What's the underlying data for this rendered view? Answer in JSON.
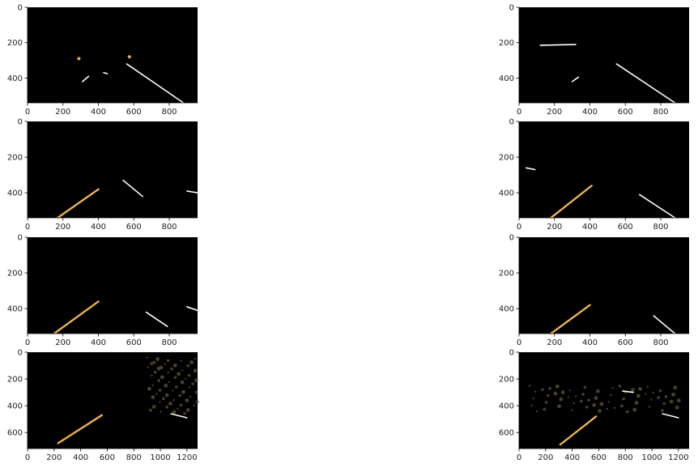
{
  "colors": {
    "frame": "#000000",
    "lane_white": "#ffffff",
    "lane_yellow": "#e8b34a",
    "foliage": "#5a5030",
    "sky_blue": "#b8c8e8"
  },
  "chart_data": [
    {
      "type": "image",
      "panel": "row1-left",
      "xticks": [
        0,
        200,
        400,
        600,
        800
      ],
      "yticks": [
        0,
        200,
        400
      ],
      "xlim": [
        0,
        960
      ],
      "ylim": [
        540,
        0
      ],
      "marks": {
        "white": [
          [
            310,
            420,
            345,
            390
          ],
          [
            560,
            320,
            880,
            540
          ],
          [
            430,
            370,
            450,
            375
          ]
        ],
        "yellow": [],
        "dots": [
          [
            290,
            290
          ],
          [
            575,
            280
          ]
        ]
      }
    },
    {
      "type": "image",
      "panel": "row1-right",
      "xticks": [
        0,
        200,
        400,
        600,
        800
      ],
      "yticks": [
        0,
        200,
        400
      ],
      "xlim": [
        0,
        960
      ],
      "ylim": [
        540,
        0
      ],
      "marks": {
        "white": [
          [
            300,
            420,
            335,
            395
          ],
          [
            550,
            320,
            880,
            540
          ],
          [
            120,
            215,
            320,
            210
          ]
        ],
        "yellow": [],
        "dots": []
      }
    },
    {
      "type": "image",
      "panel": "row2-left",
      "xticks": [
        0,
        200,
        400,
        600,
        800
      ],
      "yticks": [
        0,
        200,
        400
      ],
      "xlim": [
        0,
        960
      ],
      "ylim": [
        540,
        0
      ],
      "marks": {
        "white": [
          [
            540,
            330,
            650,
            420
          ],
          [
            900,
            390,
            960,
            400
          ]
        ],
        "yellow": [
          [
            170,
            540,
            400,
            380
          ]
        ],
        "dots": []
      }
    },
    {
      "type": "image",
      "panel": "row2-right",
      "xticks": [
        0,
        200,
        400,
        600,
        800
      ],
      "yticks": [
        0,
        200,
        400
      ],
      "xlim": [
        0,
        960
      ],
      "ylim": [
        540,
        0
      ],
      "marks": {
        "white": [
          [
            680,
            410,
            880,
            540
          ],
          [
            40,
            260,
            90,
            270
          ]
        ],
        "yellow": [
          [
            180,
            540,
            410,
            360
          ]
        ],
        "dots": []
      }
    },
    {
      "type": "image",
      "panel": "row3-left",
      "xticks": [
        0,
        200,
        400,
        600,
        800
      ],
      "yticks": [
        0,
        200,
        400
      ],
      "xlim": [
        0,
        960
      ],
      "ylim": [
        540,
        0
      ],
      "marks": {
        "white": [
          [
            670,
            420,
            790,
            500
          ],
          [
            900,
            390,
            960,
            410
          ]
        ],
        "yellow": [
          [
            150,
            540,
            400,
            360
          ]
        ],
        "dots": []
      }
    },
    {
      "type": "image",
      "panel": "row3-right",
      "xticks": [
        0,
        200,
        400,
        600,
        800
      ],
      "yticks": [
        0,
        200,
        400
      ],
      "xlim": [
        0,
        960
      ],
      "ylim": [
        540,
        0
      ],
      "marks": {
        "white": [
          [
            760,
            440,
            880,
            540
          ]
        ],
        "yellow": [
          [
            180,
            540,
            400,
            380
          ]
        ],
        "dots": []
      }
    },
    {
      "type": "image",
      "panel": "row4-left",
      "xticks": [
        0,
        200,
        400,
        600,
        800,
        1000,
        1200
      ],
      "yticks": [
        0,
        200,
        400,
        600
      ],
      "xlim": [
        0,
        1280
      ],
      "ylim": [
        720,
        0
      ],
      "marks": {
        "white": [
          [
            1080,
            460,
            1200,
            490
          ]
        ],
        "yellow": [
          [
            230,
            680,
            560,
            470
          ]
        ],
        "dots": []
      }
    },
    {
      "type": "image",
      "panel": "row4-right",
      "xticks": [
        0,
        200,
        400,
        600,
        800,
        1000,
        1200
      ],
      "yticks": [
        0,
        200,
        400,
        600
      ],
      "xlim": [
        0,
        1280
      ],
      "ylim": [
        720,
        0
      ],
      "marks": {
        "white": [
          [
            1080,
            460,
            1200,
            490
          ],
          [
            780,
            290,
            860,
            300
          ]
        ],
        "yellow": [
          [
            310,
            690,
            580,
            480
          ]
        ],
        "dots": []
      }
    }
  ]
}
